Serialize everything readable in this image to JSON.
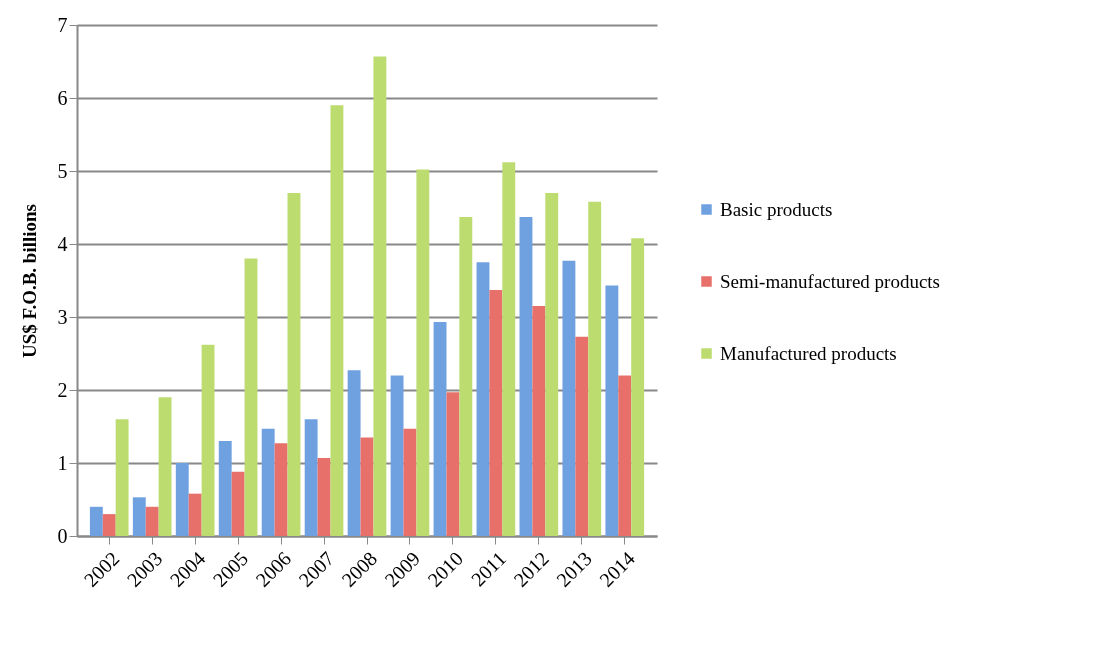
{
  "chart_data": {
    "type": "bar",
    "ylabel": "US$ F.O.B. billions",
    "categories": [
      "2002",
      "2003",
      "2004",
      "2005",
      "2006",
      "2007",
      "2008",
      "2009",
      "2010",
      "2011",
      "2012",
      "2013",
      "2014"
    ],
    "series": [
      {
        "name": "Basic products",
        "color": "#6fa0e0",
        "values": [
          0.4,
          0.53,
          1.0,
          1.3,
          1.47,
          1.6,
          2.27,
          2.2,
          2.93,
          3.75,
          4.37,
          3.77,
          3.43
        ]
      },
      {
        "name": "Semi-manufactured products",
        "color": "#e8706a",
        "values": [
          0.3,
          0.4,
          0.58,
          0.88,
          1.27,
          1.07,
          1.35,
          1.47,
          1.97,
          3.37,
          3.15,
          2.73,
          2.2
        ]
      },
      {
        "name": "Manufactured products",
        "color": "#bcdc70",
        "values": [
          1.6,
          1.9,
          2.62,
          3.8,
          4.7,
          5.9,
          6.57,
          5.02,
          4.37,
          5.12,
          4.7,
          4.58,
          4.08
        ]
      }
    ],
    "ylim": [
      0,
      7
    ],
    "yticks": [
      0,
      1,
      2,
      3,
      4,
      5,
      6,
      7
    ],
    "grid": "y",
    "legend": "right"
  }
}
